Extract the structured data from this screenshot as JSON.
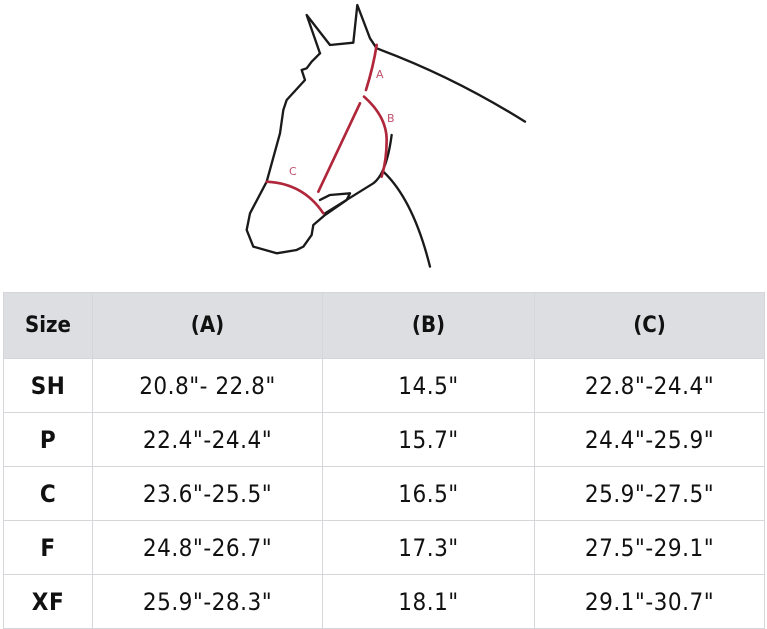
{
  "diagram": {
    "labels": [
      "A",
      "B",
      "C"
    ],
    "outline_color": "#1a1a1a",
    "measure_color": "#b0263a",
    "label_color": "#c0506a"
  },
  "table": {
    "headers": [
      "Size",
      "(A)",
      "(B)",
      "(C)"
    ],
    "rows": [
      [
        "SH",
        "20.8\"- 22.8\"",
        "14.5\"",
        "22.8\"-24.4\""
      ],
      [
        "P",
        "22.4\"-24.4\"",
        "15.7\"",
        "24.4\"-25.9\""
      ],
      [
        "C",
        "23.6\"-25.5\"",
        "16.5\"",
        "25.9\"-27.5\""
      ],
      [
        "F",
        "24.8\"-26.7\"",
        "17.3\"",
        "27.5\"-29.1\""
      ],
      [
        "XF",
        "25.9\"-28.3\"",
        "18.1\"",
        "29.1\"-30.7\""
      ]
    ]
  }
}
